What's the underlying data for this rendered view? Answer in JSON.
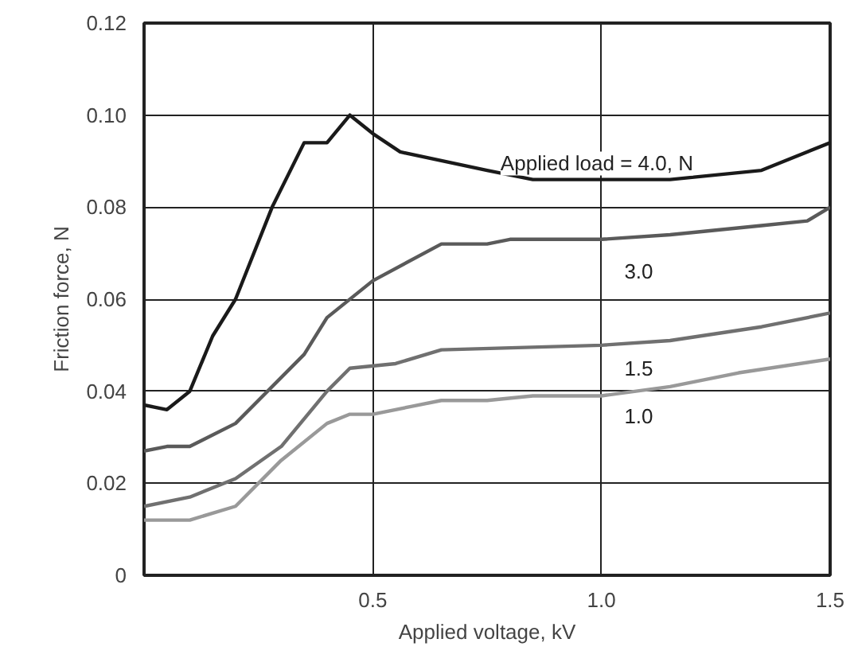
{
  "chart_data": {
    "type": "line",
    "xlabel": "Applied voltage, kV",
    "ylabel": "Friction force, N",
    "xlim": [
      0,
      1.5
    ],
    "xticks": [
      {
        "value": 0,
        "label": null
      },
      0.5,
      {
        "value": 1.0,
        "label": "1.0"
      },
      1.5
    ],
    "ylim": [
      0,
      0.12
    ],
    "yticks": [
      0,
      0.02,
      0.04,
      0.06,
      0.08,
      {
        "value": 0.1,
        "label": "0.10"
      },
      0.12
    ],
    "grid": true,
    "legend": false,
    "marker": "none",
    "line_style": "solid",
    "series": [
      {
        "name": "Applied load = 4.0, N",
        "color": "#1a1a1a",
        "x": [
          0,
          0.05,
          0.1,
          0.15,
          0.2,
          0.28,
          0.35,
          0.4,
          0.45,
          0.5,
          0.56,
          0.75,
          0.85,
          1.0,
          1.15,
          1.35,
          1.5
        ],
        "values": [
          0.037,
          0.036,
          0.04,
          0.052,
          0.06,
          0.08,
          0.094,
          0.094,
          0.1,
          0.096,
          0.092,
          0.088,
          0.086,
          0.086,
          0.086,
          0.088,
          0.094
        ]
      },
      {
        "name": "3.0",
        "color": "#5a5a5a",
        "x": [
          0,
          0.05,
          0.1,
          0.2,
          0.35,
          0.4,
          0.5,
          0.65,
          0.75,
          0.8,
          1.0,
          1.15,
          1.35,
          1.45,
          1.5
        ],
        "values": [
          0.027,
          0.028,
          0.028,
          0.033,
          0.048,
          0.056,
          0.064,
          0.072,
          0.072,
          0.073,
          0.073,
          0.074,
          0.076,
          0.077,
          0.08
        ]
      },
      {
        "name": "1.5",
        "color": "#707070",
        "x": [
          0,
          0.1,
          0.2,
          0.3,
          0.4,
          0.45,
          0.55,
          0.65,
          1.0,
          1.15,
          1.35,
          1.5
        ],
        "values": [
          0.015,
          0.017,
          0.021,
          0.028,
          0.04,
          0.045,
          0.046,
          0.049,
          0.05,
          0.051,
          0.054,
          0.057
        ]
      },
      {
        "name": "1.0",
        "color": "#999999",
        "x": [
          0,
          0.1,
          0.2,
          0.3,
          0.4,
          0.45,
          0.5,
          0.65,
          0.75,
          0.85,
          1.0,
          1.15,
          1.3,
          1.5
        ],
        "values": [
          0.012,
          0.012,
          0.015,
          0.025,
          0.033,
          0.035,
          0.035,
          0.038,
          0.038,
          0.039,
          0.039,
          0.041,
          0.044,
          0.047
        ]
      }
    ]
  }
}
